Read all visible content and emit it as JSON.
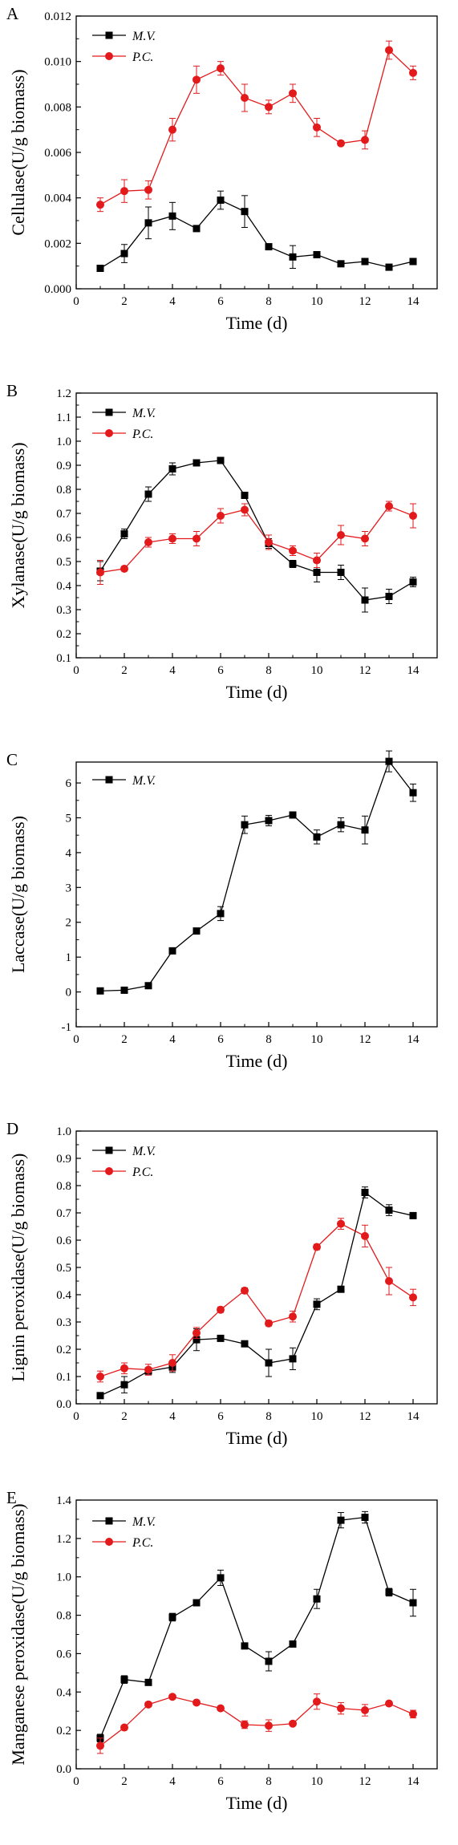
{
  "chart_data": [
    {
      "panel": "A",
      "type": "line",
      "xlabel": "Time (d)",
      "ylabel": "Cellulase(U/g biomass)",
      "xlim": [
        0,
        15
      ],
      "ylim": [
        0,
        0.012
      ],
      "x_ticks": [
        "0",
        "2",
        "4",
        "6",
        "8",
        "10",
        "12",
        "14"
      ],
      "y_ticks": [
        "0.000",
        "0.002",
        "0.004",
        "0.006",
        "0.008",
        "0.010",
        "0.012"
      ],
      "legend_position": "top-left",
      "grid": false,
      "x": [
        1,
        2,
        3,
        4,
        5,
        6,
        7,
        8,
        9,
        10,
        11,
        12,
        13,
        14
      ],
      "series": [
        {
          "name": "M.V.",
          "color": "#000000",
          "marker": "square",
          "values": [
            0.0009,
            0.00155,
            0.0029,
            0.0032,
            0.00265,
            0.0039,
            0.0034,
            0.00185,
            0.0014,
            0.0015,
            0.0011,
            0.0012,
            0.00095,
            0.0012
          ],
          "errors": [
            0.0001,
            0.0004,
            0.0007,
            0.0006,
            0.0001,
            0.0004,
            0.0007,
            0.0001,
            0.0005,
            0.0001,
            0.0001,
            0.0001,
            0.0001,
            0.0001
          ]
        },
        {
          "name": "P.C.",
          "color": "#e31a1c",
          "marker": "circle",
          "values": [
            0.0037,
            0.0043,
            0.00435,
            0.007,
            0.0092,
            0.0097,
            0.0084,
            0.008,
            0.0086,
            0.0071,
            0.0064,
            0.00655,
            0.0105,
            0.0095
          ],
          "errors": [
            0.0003,
            0.0005,
            0.0004,
            0.0005,
            0.0006,
            0.0003,
            0.0006,
            0.0003,
            0.0004,
            0.0004,
            0.0001,
            0.0004,
            0.0004,
            0.0003
          ]
        }
      ]
    },
    {
      "panel": "B",
      "type": "line",
      "xlabel": "Time (d)",
      "ylabel": "Xylanase(U/g biomass)",
      "xlim": [
        0,
        15
      ],
      "ylim": [
        0.1,
        1.2
      ],
      "x_ticks": [
        "0",
        "2",
        "4",
        "6",
        "8",
        "10",
        "12",
        "14"
      ],
      "y_ticks": [
        "0.1",
        "0.2",
        "0.3",
        "0.4",
        "0.5",
        "0.6",
        "0.7",
        "0.8",
        "0.9",
        "1.0",
        "1.1",
        "1.2"
      ],
      "legend_position": "top-left",
      "grid": false,
      "x": [
        1,
        2,
        3,
        4,
        5,
        6,
        7,
        8,
        9,
        10,
        11,
        12,
        13,
        14
      ],
      "series": [
        {
          "name": "M.V.",
          "color": "#000000",
          "marker": "square",
          "values": [
            0.46,
            0.615,
            0.78,
            0.885,
            0.91,
            0.92,
            0.775,
            0.575,
            0.49,
            0.455,
            0.455,
            0.34,
            0.355,
            0.415
          ],
          "errors": [
            0.04,
            0.02,
            0.03,
            0.025,
            0.01,
            0.005,
            0.01,
            0.02,
            0.015,
            0.04,
            0.03,
            0.05,
            0.03,
            0.02
          ]
        },
        {
          "name": "P.C.",
          "color": "#e31a1c",
          "marker": "circle",
          "values": [
            0.455,
            0.47,
            0.58,
            0.595,
            0.595,
            0.69,
            0.715,
            0.58,
            0.545,
            0.505,
            0.61,
            0.595,
            0.73,
            0.69
          ],
          "errors": [
            0.05,
            0.01,
            0.02,
            0.02,
            0.03,
            0.03,
            0.025,
            0.03,
            0.02,
            0.03,
            0.04,
            0.03,
            0.02,
            0.05
          ]
        }
      ]
    },
    {
      "panel": "C",
      "type": "line",
      "xlabel": "Time (d)",
      "ylabel": "Laccase(U/g biomass)",
      "xlim": [
        0,
        15
      ],
      "ylim": [
        -1,
        6.6
      ],
      "x_ticks": [
        "0",
        "2",
        "4",
        "6",
        "8",
        "10",
        "12",
        "14"
      ],
      "y_ticks": [
        "-1",
        "0",
        "1",
        "2",
        "3",
        "4",
        "5",
        "6"
      ],
      "legend_position": "top-left",
      "grid": false,
      "x": [
        1,
        2,
        3,
        4,
        5,
        6,
        7,
        8,
        9,
        10,
        11,
        12,
        13,
        14
      ],
      "series": [
        {
          "name": "M.V.",
          "color": "#000000",
          "marker": "square",
          "values": [
            0.03,
            0.05,
            0.18,
            1.18,
            1.75,
            2.25,
            4.8,
            4.92,
            5.08,
            4.45,
            4.8,
            4.65,
            6.62,
            5.72
          ],
          "errors": [
            0.02,
            0.02,
            0.03,
            0.05,
            0.05,
            0.2,
            0.25,
            0.15,
            0.05,
            0.2,
            0.2,
            0.4,
            0.3,
            0.25
          ]
        }
      ]
    },
    {
      "panel": "D",
      "type": "line",
      "xlabel": "Time (d)",
      "ylabel": "Lignin peroxidase(U/g biomass)",
      "xlim": [
        0,
        15
      ],
      "ylim": [
        0,
        1.0
      ],
      "x_ticks": [
        "0",
        "2",
        "4",
        "6",
        "8",
        "10",
        "12",
        "14"
      ],
      "y_ticks": [
        "0.0",
        "0.1",
        "0.2",
        "0.3",
        "0.4",
        "0.5",
        "0.6",
        "0.7",
        "0.8",
        "0.9",
        "1.0"
      ],
      "legend_position": "top-left",
      "grid": false,
      "x": [
        1,
        2,
        3,
        4,
        5,
        6,
        7,
        8,
        9,
        10,
        11,
        12,
        13,
        14
      ],
      "series": [
        {
          "name": "M.V.",
          "color": "#000000",
          "marker": "square",
          "values": [
            0.03,
            0.07,
            0.12,
            0.135,
            0.235,
            0.24,
            0.22,
            0.15,
            0.165,
            0.365,
            0.42,
            0.775,
            0.71,
            0.69
          ],
          "errors": [
            0.01,
            0.03,
            0.01,
            0.02,
            0.04,
            0.01,
            0.01,
            0.05,
            0.04,
            0.02,
            0.01,
            0.02,
            0.02,
            0.01
          ]
        },
        {
          "name": "P.C.",
          "color": "#e31a1c",
          "marker": "circle",
          "values": [
            0.1,
            0.13,
            0.125,
            0.15,
            0.26,
            0.345,
            0.415,
            0.295,
            0.32,
            0.575,
            0.66,
            0.615,
            0.45,
            0.39
          ],
          "errors": [
            0.02,
            0.02,
            0.02,
            0.03,
            0.02,
            0.01,
            0.01,
            0.01,
            0.02,
            0.01,
            0.02,
            0.04,
            0.05,
            0.03
          ]
        }
      ]
    },
    {
      "panel": "E",
      "type": "line",
      "xlabel": "Time (d)",
      "ylabel": "Manganese peroxidase(U/g biomass)",
      "xlim": [
        0,
        15
      ],
      "ylim": [
        0,
        1.4
      ],
      "x_ticks": [
        "0",
        "2",
        "4",
        "6",
        "8",
        "10",
        "12",
        "14"
      ],
      "y_ticks": [
        "0.0",
        "0.2",
        "0.4",
        "0.6",
        "0.8",
        "1.0",
        "1.2",
        "1.4"
      ],
      "legend_position": "top-left",
      "grid": false,
      "x": [
        1,
        2,
        3,
        4,
        5,
        6,
        7,
        8,
        9,
        10,
        11,
        12,
        13,
        14
      ],
      "series": [
        {
          "name": "M.V.",
          "color": "#000000",
          "marker": "square",
          "values": [
            0.16,
            0.465,
            0.45,
            0.79,
            0.865,
            0.995,
            0.64,
            0.56,
            0.65,
            0.885,
            1.295,
            1.31,
            0.92,
            0.865
          ],
          "errors": [
            0.02,
            0.02,
            0.01,
            0.02,
            0.01,
            0.04,
            0.01,
            0.05,
            0.01,
            0.05,
            0.04,
            0.03,
            0.02,
            0.07
          ]
        },
        {
          "name": "P.C.",
          "color": "#e31a1c",
          "marker": "circle",
          "values": [
            0.12,
            0.215,
            0.335,
            0.375,
            0.345,
            0.315,
            0.23,
            0.225,
            0.235,
            0.35,
            0.315,
            0.305,
            0.34,
            0.285
          ],
          "errors": [
            0.04,
            0.01,
            0.01,
            0.01,
            0.01,
            0.01,
            0.02,
            0.03,
            0.01,
            0.04,
            0.03,
            0.03,
            0.01,
            0.02
          ]
        }
      ]
    }
  ]
}
